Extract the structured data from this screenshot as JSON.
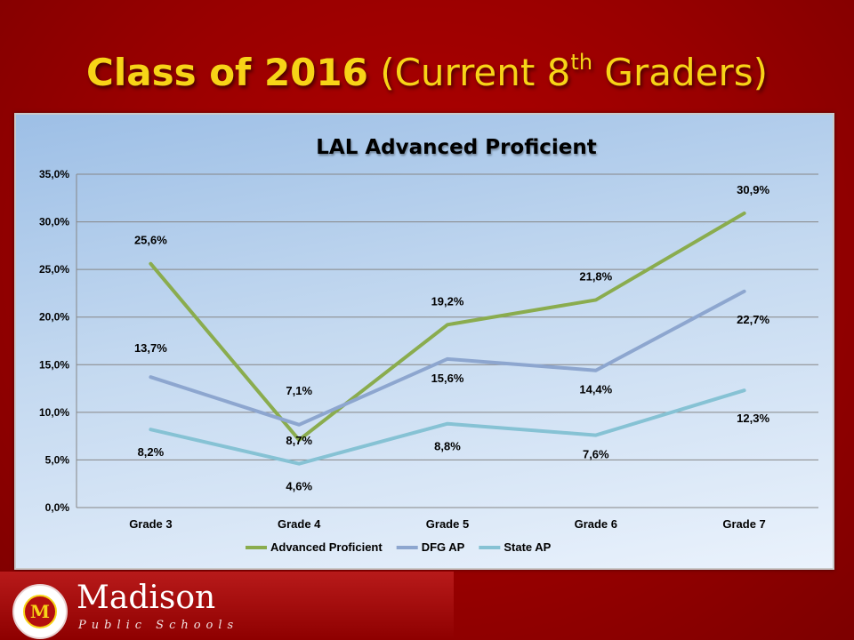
{
  "slide": {
    "title_bold": "Class of 2016",
    "title_rest": "(Current 8",
    "title_sup": "th",
    "title_end": " Graders)"
  },
  "chart_data": {
    "type": "line",
    "title": "LAL Advanced Proficient",
    "categories": [
      "Grade 3",
      "Grade 4",
      "Grade 5",
      "Grade 6",
      "Grade 7"
    ],
    "series": [
      {
        "name": "Advanced Proficient",
        "values": [
          25.6,
          7.1,
          19.2,
          21.8,
          30.9
        ],
        "labels": [
          "25,6%",
          "7,1%",
          "19,2%",
          "21,8%",
          "30,9%"
        ],
        "color": "#8aac4e"
      },
      {
        "name": "DFG AP",
        "values": [
          13.7,
          8.7,
          15.6,
          14.4,
          22.7
        ],
        "labels": [
          "13,7%",
          "8,7%",
          "15,6%",
          "14,4%",
          "22,7%"
        ],
        "color": "#8da6cf"
      },
      {
        "name": "State AP",
        "values": [
          8.2,
          4.6,
          8.8,
          7.6,
          12.3
        ],
        "labels": [
          "8,2%",
          "4,6%",
          "8,8%",
          "7,6%",
          "12,3%"
        ],
        "color": "#86c2d4"
      }
    ],
    "ylim": [
      0,
      35
    ],
    "yticks": [
      "0,0%",
      "5,0%",
      "10,0%",
      "15,0%",
      "20,0%",
      "25,0%",
      "30,0%",
      "35,0%"
    ],
    "ytick_values": [
      0,
      5,
      10,
      15,
      20,
      25,
      30,
      35
    ],
    "grid": true,
    "legend_position": "bottom"
  },
  "footer": {
    "brand_name": "Madison",
    "brand_sub": "Public Schools",
    "seal_letter": "M"
  }
}
